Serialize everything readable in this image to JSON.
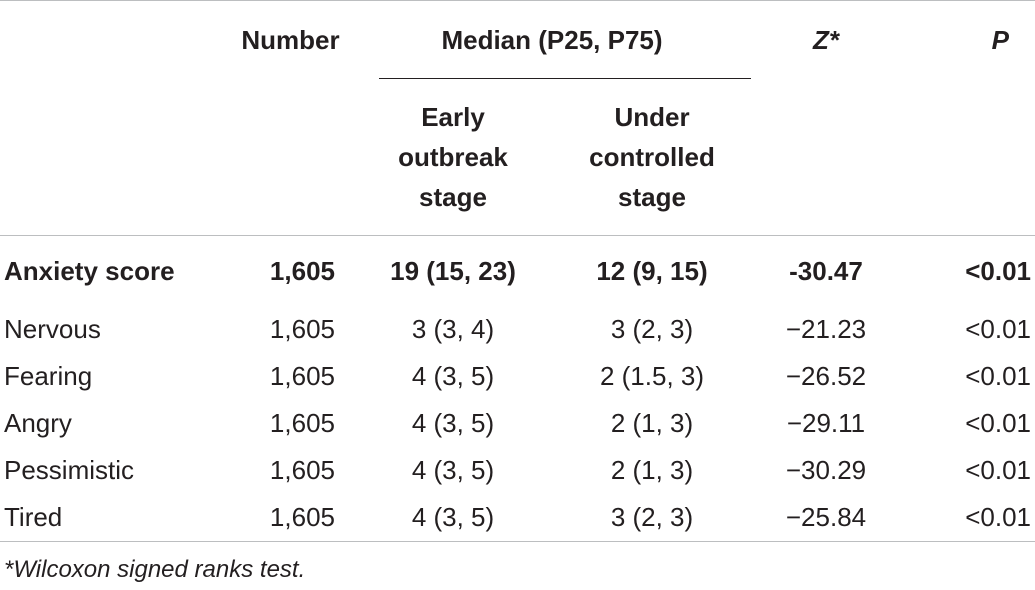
{
  "table": {
    "headers": {
      "number": "Number",
      "median": "Median (P25, P75)",
      "z": "Z*",
      "p": "P",
      "early_line1": "Early",
      "early_line2": "outbreak",
      "early_line3": "stage",
      "under_line1": "Under",
      "under_line2": "controlled",
      "under_line3": "stage"
    },
    "rows": [
      {
        "label": "Anxiety score",
        "number": "1,605",
        "early": "19 (15, 23)",
        "under": "12 (9, 15)",
        "z": "-30.47",
        "p": "<0.01"
      },
      {
        "label": "Nervous",
        "number": "1,605",
        "early": "3 (3, 4)",
        "under": "3 (2, 3)",
        "z": "−21.23",
        "p": "<0.01"
      },
      {
        "label": "Fearing",
        "number": "1,605",
        "early": "4 (3, 5)",
        "under": "2 (1.5, 3)",
        "z": "−26.52",
        "p": "<0.01"
      },
      {
        "label": "Angry",
        "number": "1,605",
        "early": "4 (3, 5)",
        "under": "2 (1, 3)",
        "z": "−29.11",
        "p": "<0.01"
      },
      {
        "label": "Pessimistic",
        "number": "1,605",
        "early": "4 (3, 5)",
        "under": "2 (1, 3)",
        "z": "−30.29",
        "p": "<0.01"
      },
      {
        "label": "Tired",
        "number": "1,605",
        "early": "4 (3, 5)",
        "under": "3 (2, 3)",
        "z": "−25.84",
        "p": "<0.01"
      }
    ],
    "footnote": "*Wilcoxon signed ranks test."
  }
}
